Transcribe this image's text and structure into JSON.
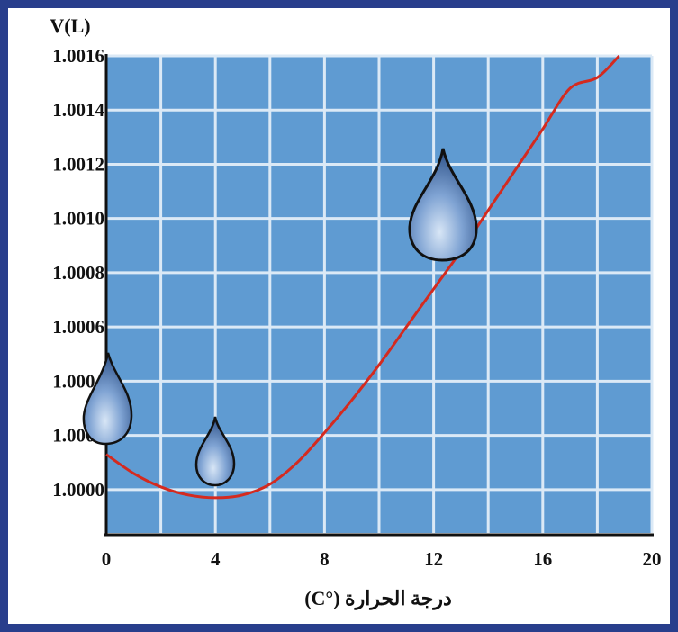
{
  "chart_data": {
    "type": "line",
    "title": "",
    "ylabel": "V(L)",
    "xlabel": "درجة الحرارة (°C)",
    "x_ticks": [
      0,
      4,
      8,
      12,
      16,
      20
    ],
    "y_ticks": [
      "1.0000",
      "1.0002",
      "1.0004",
      "1.0006",
      "1.0008",
      "1.0010",
      "1.0012",
      "1.0014",
      "1.0016"
    ],
    "xlim": [
      0,
      20
    ],
    "ylim": [
      0.99984,
      1.0016
    ],
    "grid": true,
    "series": [
      {
        "x": [
          0,
          1,
          2,
          3,
          4,
          5,
          6,
          7,
          8,
          9,
          10,
          11,
          12,
          13,
          14,
          15,
          16,
          17,
          18,
          18.8
        ],
        "y": [
          1.00013,
          1.00006,
          1.00001,
          0.99998,
          0.99997,
          0.99998,
          1.00002,
          1.0001,
          1.00021,
          1.00033,
          1.00046,
          1.0006,
          1.00074,
          1.00088,
          1.00103,
          1.00118,
          1.00133,
          1.00148,
          1.00152,
          1.0016
        ]
      }
    ],
    "decorations": [
      "water-drop",
      "water-drop",
      "water-drop"
    ]
  },
  "colors": {
    "frame": "#283e8c",
    "plot_background": "#5f9bd2",
    "grid": "#dbe9f6",
    "curve": "#d42a1f",
    "axis": "#111111",
    "drop_light": "#c9dcf2",
    "drop_dark": "#2b4f86"
  }
}
